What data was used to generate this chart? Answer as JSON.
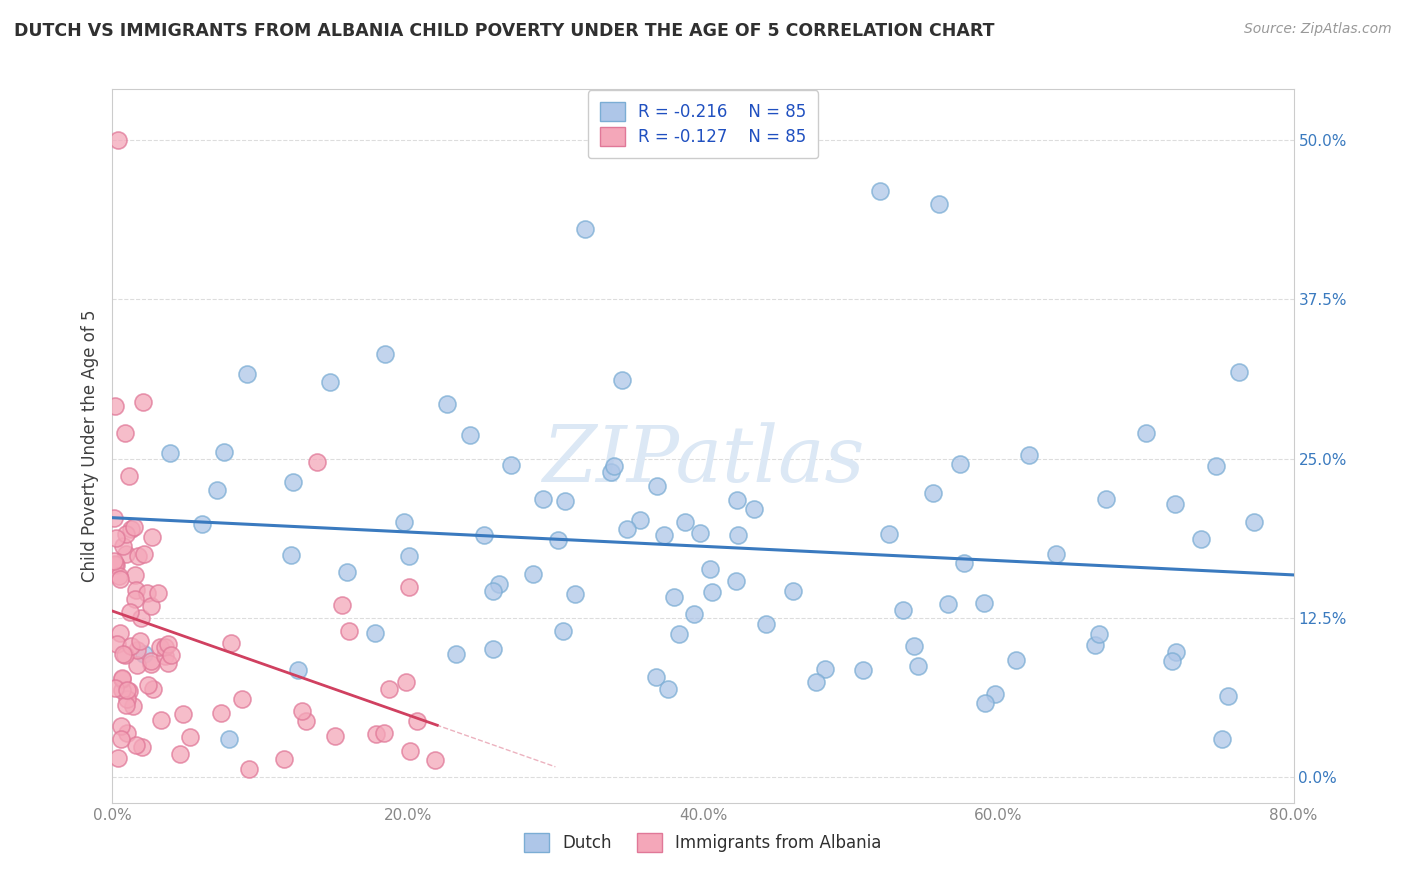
{
  "title": "DUTCH VS IMMIGRANTS FROM ALBANIA CHILD POVERTY UNDER THE AGE OF 5 CORRELATION CHART",
  "source": "Source: ZipAtlas.com",
  "ylabel": "Child Poverty Under the Age of 5",
  "xlim": [
    0.0,
    0.8
  ],
  "ylim": [
    -0.02,
    0.54
  ],
  "xticks": [
    0.0,
    0.2,
    0.4,
    0.6,
    0.8
  ],
  "xtick_labels": [
    "0.0%",
    "20.0%",
    "40.0%",
    "60.0%",
    "80.0%"
  ],
  "yticks": [
    0.0,
    0.125,
    0.25,
    0.375,
    0.5
  ],
  "ytick_labels_left": [
    "",
    "",
    "",
    "",
    ""
  ],
  "ytick_labels_right": [
    "0.0%",
    "12.5%",
    "25.0%",
    "37.5%",
    "50.0%"
  ],
  "dutch_color": "#aec6e8",
  "albania_color": "#f4a7b9",
  "dutch_edge_color": "#7badd4",
  "albania_edge_color": "#e07898",
  "trend_dutch_color": "#3a7abf",
  "trend_albania_color": "#d04060",
  "watermark_color": "#dce8f5",
  "legend_R_dutch": "R = -0.216",
  "legend_N_dutch": "N = 85",
  "legend_R_albania": "R = -0.127",
  "legend_N_albania": "N = 85",
  "dutch_R": -0.216,
  "albania_R": -0.127,
  "background_color": "#ffffff",
  "grid_color": "#dddddd",
  "title_color": "#303030",
  "axis_label_color": "#404040",
  "tick_label_color_right": "#3a7abf",
  "tick_label_color_left": "#888888"
}
